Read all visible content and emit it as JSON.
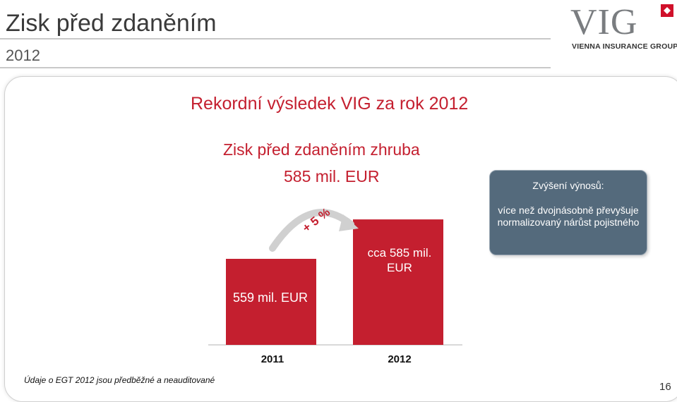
{
  "slide": {
    "title": "Zisk před zdaněním",
    "subtitle": "2012",
    "headline": "Rekordní výsledek VIG za rok 2012",
    "subheadline_line1": "Zisk před zdaněním zhruba",
    "subheadline_line2": "585 mil. EUR",
    "footnote": "Údaje o EGT 2012 jsou předběžné a neauditované",
    "page_number": "16"
  },
  "logo": {
    "text": "VIG",
    "tagline": "VIENNA INSURANCE GROUP"
  },
  "callout": {
    "title": "Zvýšení výnosů:",
    "body": "více než dvojnásobně převyšuje normalizovaný nárůst pojistného"
  },
  "chart_data": {
    "type": "bar",
    "categories": [
      "2011",
      "2012"
    ],
    "values": [
      559,
      585
    ],
    "bar_labels": [
      "559 mil. EUR",
      "cca 585 mil.\nEUR"
    ],
    "growth_label": "+ 5 %",
    "colors": {
      "bar": "#c41f2f",
      "growth": "#c41f2f"
    }
  }
}
